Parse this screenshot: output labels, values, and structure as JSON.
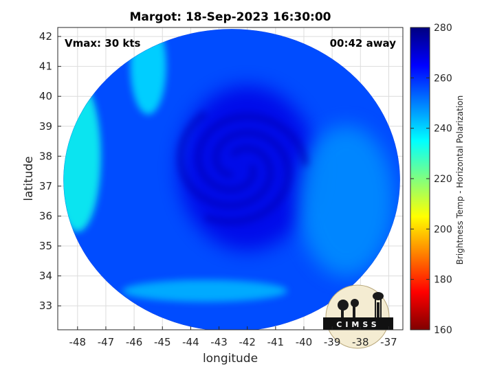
{
  "chart_data": {
    "type": "heatmap",
    "title": "Margot: 18-Sep-2023 16:30:00",
    "annotations": {
      "vmax": "Vmax: 30 kts",
      "time_away": "00:42 away"
    },
    "xlabel": "longitude",
    "ylabel": "latitude",
    "xlim": [
      -48.7,
      -36.5
    ],
    "ylim": [
      32.2,
      42.3
    ],
    "x_ticks": [
      "-48",
      "-47",
      "-46",
      "-45",
      "-44",
      "-43",
      "-42",
      "-41",
      "-40",
      "-39",
      "-38",
      "-37"
    ],
    "y_ticks": [
      "33",
      "34",
      "35",
      "36",
      "37",
      "38",
      "39",
      "40",
      "41",
      "42"
    ],
    "grid": true,
    "colorbar": {
      "label": "Brightness Temp - Horizontal Polarization",
      "range": [
        160,
        280
      ],
      "ticks": [
        "160",
        "180",
        "200",
        "220",
        "240",
        "260",
        "280"
      ],
      "colormap": "jet"
    },
    "swath": {
      "center_lon": -42.55,
      "center_lat": 37.2,
      "radius_lon": 5.95,
      "radius_lat": 5.05
    },
    "storm_center": {
      "lon": -42.3,
      "lat": 37.7
    },
    "field_regions": [
      {
        "feature": "background ocean",
        "lon": -41,
        "lat": 36,
        "value": 256
      },
      {
        "feature": "central overcast",
        "lon": -42,
        "lat": 37.6,
        "value": 268
      },
      {
        "feature": "western warm band",
        "lon": -48,
        "lat": 38,
        "value": 233
      },
      {
        "feature": "north-western band",
        "lon": -45.5,
        "lat": 41,
        "value": 238
      },
      {
        "feature": "southern band",
        "lon": -43.5,
        "lat": 33.5,
        "value": 243
      },
      {
        "feature": "eastern region",
        "lon": -38.5,
        "lat": 36.5,
        "value": 248
      }
    ],
    "logo_text": "CIMSS"
  }
}
